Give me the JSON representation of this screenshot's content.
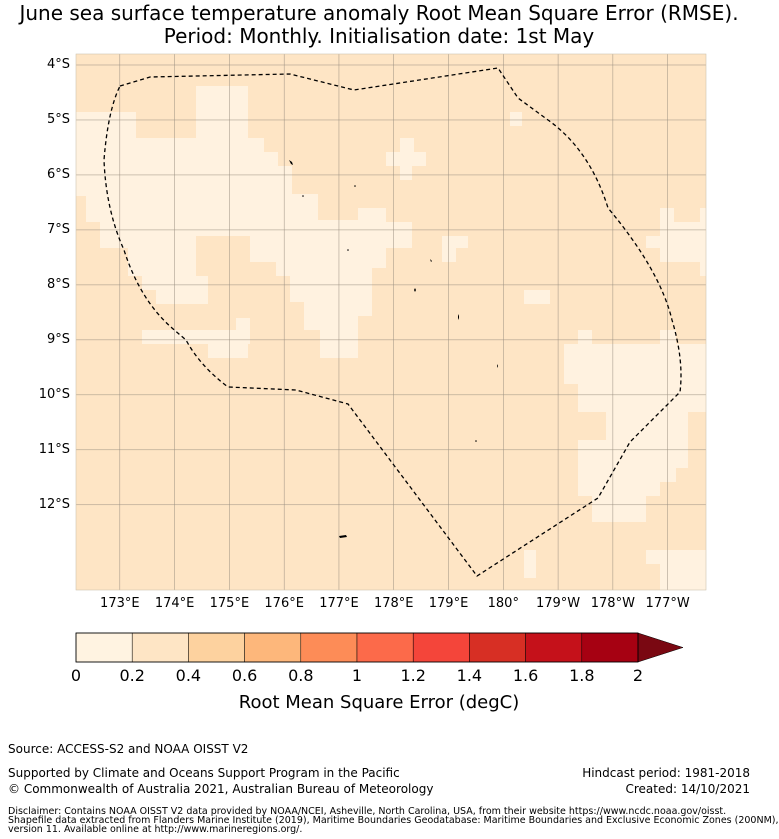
{
  "title": {
    "line1": "June sea surface temperature anomaly Root Mean Square Error (RMSE).",
    "line2": "Period: Monthly. Initialisation date: 1st May"
  },
  "map": {
    "lat_labels": [
      "4°S",
      "5°S",
      "6°S",
      "7°S",
      "8°S",
      "9°S",
      "10°S",
      "11°S",
      "12°S"
    ],
    "lat_values": [
      -4,
      -5,
      -6,
      -7,
      -8,
      -9,
      -10,
      -11,
      -12
    ],
    "lon_labels": [
      "173°E",
      "174°E",
      "175°E",
      "176°E",
      "177°E",
      "178°E",
      "179°E",
      "180°",
      "179°W",
      "178°W",
      "177°W"
    ],
    "lon_values": [
      173,
      174,
      175,
      176,
      177,
      178,
      179,
      180,
      181,
      182,
      183
    ],
    "lon_range": [
      172.2,
      183.7
    ],
    "lat_range": [
      -3.8,
      -13.55
    ],
    "base_color": "#fee5c5",
    "low_color": "#fff2e0",
    "gridline_color": "#9a8f80",
    "boundary_color": "#000000"
  },
  "colorbar": {
    "colors": [
      "#fff3e1",
      "#fee5c5",
      "#fdd29f",
      "#fdb77b",
      "#fd8c57",
      "#fc6a4a",
      "#f4453a",
      "#d72f24",
      "#c5111a",
      "#a60112",
      "#7a0812"
    ],
    "ticks": [
      "0",
      "0.2",
      "0.4",
      "0.6",
      "0.8",
      "1",
      "1.2",
      "1.4",
      "1.6",
      "1.8",
      "2"
    ],
    "label": "Root Mean Square Error (degC)"
  },
  "footer": {
    "source": "Source: ACCESS-S2 and NOAA OISST V2",
    "supported": "Supported by Climate and Oceans Support Program in the Pacific",
    "copyright": "© Commonwealth of Australia 2021, Australian Bureau of Meteorology",
    "hindcast": "Hindcast period: 1981-2018",
    "created": "Created: 14/10/2021",
    "disclaimer1": "Disclaimer: Contains NOAA OISST V2 data provided by NOAA/NCEI, Asheville, North Carolina, USA, from their website https://www.ncdc.noaa.gov/oisst.",
    "disclaimer2": "Shapefile data extracted from Flanders Marine Institute (2019), Maritime Boundaries Geodatabase: Maritime Boundaries and Exclusive Economic Zones (200NM),",
    "disclaimer3": "version 11. Available online at http://www.marineregions.org/."
  }
}
